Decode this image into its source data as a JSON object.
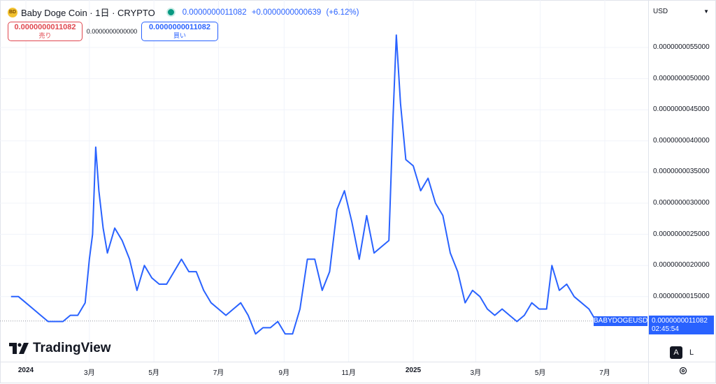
{
  "legend": {
    "coin_icon_text": "BD",
    "title": "Baby Doge Coin · 1日 · CRYPTO",
    "last": "0.0000000011082",
    "change": "+0.0000000000639",
    "change_pct": "(+6.12%)",
    "live_color": "#089981"
  },
  "trade": {
    "sell_price": "0.0000000011082",
    "sell_label": "売り",
    "spread": "0.0000000000000",
    "buy_price": "0.0000000011082",
    "buy_label": "買い"
  },
  "price_scale": {
    "currency": "USD",
    "labels": [
      "0.0000000055000",
      "0.0000000050000",
      "0.0000000045000",
      "0.0000000040000",
      "0.0000000035000",
      "0.0000000030000",
      "0.0000000025000",
      "0.0000000020000",
      "0.0000000015000"
    ],
    "last_price": "0.0000000011082",
    "countdown": "02:45:54",
    "symbol_tag": "BABYDOGEUSD"
  },
  "time_scale": {
    "labels": [
      "2024",
      "3月",
      "5月",
      "7月",
      "9月",
      "11月",
      "2025",
      "3月",
      "5月",
      "7月"
    ]
  },
  "branding": {
    "logo_text": "TradingView"
  },
  "controls": {
    "auto_label": "A",
    "log_label": "L",
    "settings_icon": "gear-icon"
  },
  "colors": {
    "line": "#2962ff",
    "sell": "#e0474f",
    "buy": "#2962ff",
    "accent": "#2962ff"
  },
  "chart_data": {
    "type": "line",
    "title": "Baby Doge Coin · 1日 · CRYPTO",
    "series_name": "BABYDOGEUSD",
    "currency": "USD",
    "x_range": [
      "2023-12-18",
      "2025-07-31"
    ],
    "ylim": [
      6e-10,
      5.7e-09
    ],
    "last_value": 1.1082e-09,
    "points": [
      [
        "2023-12-18",
        1.5e-09
      ],
      [
        "2023-12-25",
        1.5e-09
      ],
      [
        "2024-01-01",
        1.4e-09
      ],
      [
        "2024-01-08",
        1.3e-09
      ],
      [
        "2024-01-15",
        1.2e-09
      ],
      [
        "2024-01-22",
        1.1e-09
      ],
      [
        "2024-01-29",
        1.1e-09
      ],
      [
        "2024-02-05",
        1.1e-09
      ],
      [
        "2024-02-12",
        1.2e-09
      ],
      [
        "2024-02-19",
        1.2e-09
      ],
      [
        "2024-02-26",
        1.4e-09
      ],
      [
        "2024-03-01",
        2.1e-09
      ],
      [
        "2024-03-04",
        2.5e-09
      ],
      [
        "2024-03-07",
        3.9e-09
      ],
      [
        "2024-03-10",
        3.2e-09
      ],
      [
        "2024-03-14",
        2.6e-09
      ],
      [
        "2024-03-18",
        2.2e-09
      ],
      [
        "2024-03-25",
        2.6e-09
      ],
      [
        "2024-04-01",
        2.4e-09
      ],
      [
        "2024-04-08",
        2.1e-09
      ],
      [
        "2024-04-15",
        1.6e-09
      ],
      [
        "2024-04-22",
        2e-09
      ],
      [
        "2024-04-29",
        1.8e-09
      ],
      [
        "2024-05-06",
        1.7e-09
      ],
      [
        "2024-05-13",
        1.7e-09
      ],
      [
        "2024-05-20",
        1.9e-09
      ],
      [
        "2024-05-27",
        2.1e-09
      ],
      [
        "2024-06-03",
        1.9e-09
      ],
      [
        "2024-06-10",
        1.9e-09
      ],
      [
        "2024-06-17",
        1.6e-09
      ],
      [
        "2024-06-24",
        1.4e-09
      ],
      [
        "2024-07-01",
        1.3e-09
      ],
      [
        "2024-07-08",
        1.2e-09
      ],
      [
        "2024-07-15",
        1.3e-09
      ],
      [
        "2024-07-22",
        1.4e-09
      ],
      [
        "2024-07-29",
        1.2e-09
      ],
      [
        "2024-08-05",
        9e-10
      ],
      [
        "2024-08-12",
        1e-09
      ],
      [
        "2024-08-19",
        1e-09
      ],
      [
        "2024-08-26",
        1.1e-09
      ],
      [
        "2024-09-02",
        9e-10
      ],
      [
        "2024-09-09",
        9e-10
      ],
      [
        "2024-09-16",
        1.3e-09
      ],
      [
        "2024-09-23",
        2.1e-09
      ],
      [
        "2024-09-30",
        2.1e-09
      ],
      [
        "2024-10-07",
        1.6e-09
      ],
      [
        "2024-10-14",
        1.9e-09
      ],
      [
        "2024-10-21",
        2.9e-09
      ],
      [
        "2024-10-28",
        3.2e-09
      ],
      [
        "2024-11-04",
        2.7e-09
      ],
      [
        "2024-11-11",
        2.1e-09
      ],
      [
        "2024-11-18",
        2.8e-09
      ],
      [
        "2024-11-25",
        2.2e-09
      ],
      [
        "2024-12-02",
        2.3e-09
      ],
      [
        "2024-12-09",
        2.4e-09
      ],
      [
        "2024-12-13",
        4.4e-09
      ],
      [
        "2024-12-16",
        5.7e-09
      ],
      [
        "2024-12-20",
        4.6e-09
      ],
      [
        "2024-12-25",
        3.7e-09
      ],
      [
        "2025-01-01",
        3.6e-09
      ],
      [
        "2025-01-08",
        3.2e-09
      ],
      [
        "2025-01-15",
        3.4e-09
      ],
      [
        "2025-01-22",
        3e-09
      ],
      [
        "2025-01-29",
        2.8e-09
      ],
      [
        "2025-02-05",
        2.2e-09
      ],
      [
        "2025-02-12",
        1.9e-09
      ],
      [
        "2025-02-19",
        1.4e-09
      ],
      [
        "2025-02-26",
        1.6e-09
      ],
      [
        "2025-03-05",
        1.5e-09
      ],
      [
        "2025-03-12",
        1.3e-09
      ],
      [
        "2025-03-19",
        1.2e-09
      ],
      [
        "2025-03-26",
        1.3e-09
      ],
      [
        "2025-04-02",
        1.2e-09
      ],
      [
        "2025-04-09",
        1.1e-09
      ],
      [
        "2025-04-16",
        1.2e-09
      ],
      [
        "2025-04-23",
        1.4e-09
      ],
      [
        "2025-04-30",
        1.3e-09
      ],
      [
        "2025-05-07",
        1.3e-09
      ],
      [
        "2025-05-12",
        2e-09
      ],
      [
        "2025-05-19",
        1.6e-09
      ],
      [
        "2025-05-26",
        1.7e-09
      ],
      [
        "2025-06-02",
        1.5e-09
      ],
      [
        "2025-06-09",
        1.4e-09
      ],
      [
        "2025-06-16",
        1.3e-09
      ],
      [
        "2025-06-23",
        1.1e-09
      ]
    ]
  }
}
